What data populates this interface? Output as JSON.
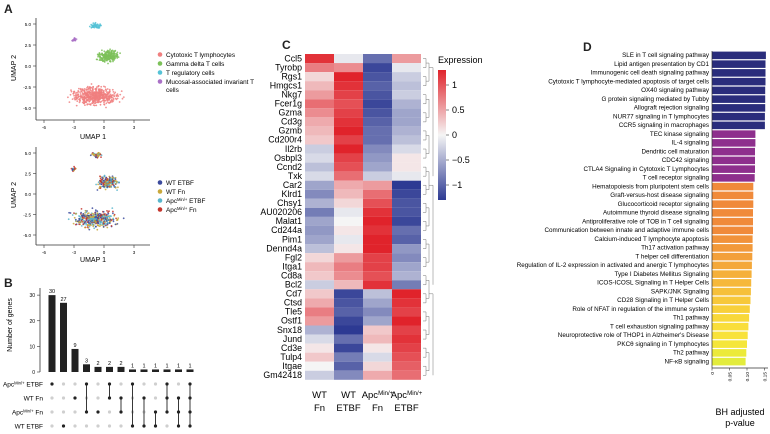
{
  "panels": {
    "A": {
      "letter": "A",
      "umap_top": {
        "xlabel": "UMAP 1",
        "ylabel": "UMAP 2",
        "x_ticks": [
          "-6",
          "-3",
          "0",
          "3"
        ],
        "y_ticks": [
          "5.0",
          "2.5",
          "0.0",
          "-2.5",
          "-5.0"
        ],
        "legend": [
          {
            "label": "Cytotoxic T lymphocytes",
            "color": "#f07f7f"
          },
          {
            "label": "Gamma delta T cells",
            "color": "#7cc159"
          },
          {
            "label": "T regulatory cells",
            "color": "#55c2d6"
          },
          {
            "label": "Mucosal-associated invariant T cells",
            "color": "#a970c6"
          }
        ]
      },
      "umap_bottom": {
        "xlabel": "UMAP 1",
        "ylabel": "UMAP 2",
        "x_ticks": [
          "-6",
          "-3",
          "0",
          "3"
        ],
        "y_ticks": [
          "5.0",
          "2.5",
          "0.0",
          "-2.5",
          "-5.0"
        ],
        "legend": [
          {
            "label": "WT ETBF",
            "color": "#3b4a9c"
          },
          {
            "label": "WT Fn",
            "color": "#c9a83b"
          },
          {
            "label": "Apc",
            "sup": "Min/+",
            "suffix": " ETBF",
            "color": "#58b6cc"
          },
          {
            "label": "Apc",
            "sup": "Min/+",
            "suffix": " Fn",
            "color": "#c4342c"
          }
        ]
      }
    },
    "B": {
      "letter": "B",
      "chart_data": {
        "type": "bar",
        "ylabel": "Number of genes",
        "y_ticks": [
          "30",
          "20",
          "10",
          "0"
        ],
        "ylim": [
          0,
          32
        ],
        "values": [
          30,
          27,
          9,
          3,
          2,
          2,
          2,
          1,
          1,
          1,
          1,
          1,
          1
        ],
        "set_labels": [
          {
            "label": "Apc",
            "sup": "Min/+",
            "suffix": " ETBF"
          },
          {
            "label": "WT Fn",
            "sup": "",
            "suffix": ""
          },
          {
            "label": "Apc",
            "sup": "Min/+",
            "suffix": " Fn"
          },
          {
            "label": "WT ETBF",
            "sup": "",
            "suffix": ""
          }
        ],
        "membership": [
          [
            0
          ],
          [
            3
          ],
          [
            1
          ],
          [
            0,
            2
          ],
          [
            2
          ],
          [
            0,
            1
          ],
          [
            1,
            2
          ],
          [
            0,
            3
          ],
          [
            1,
            3
          ],
          [
            2,
            3
          ],
          [
            0,
            1,
            2
          ],
          [
            1,
            2,
            3
          ],
          [
            0,
            1,
            2,
            3
          ]
        ]
      }
    },
    "C": {
      "letter": "C",
      "chart_data": {
        "type": "heatmap",
        "legend_title": "Expression",
        "colorbar_ticks": [
          "1",
          "0.5",
          "0",
          "-0.5",
          "-1"
        ],
        "columns": [
          {
            "line1": "WT",
            "sup": "",
            "line2": "Fn"
          },
          {
            "line1": "WT",
            "sup": "",
            "line2": "ETBF"
          },
          {
            "line1": "Apc",
            "sup": "Min/+",
            "line2": "Fn"
          },
          {
            "line1": "Apc",
            "sup": "Min/+",
            "line2": "ETBF"
          }
        ],
        "genes": [
          "Ccl5",
          "Tyrobp",
          "Rgs1",
          "Hmgcs1",
          "Nkg7",
          "Fcer1g",
          "Gzma",
          "Cd3g",
          "Gzmb",
          "Cd200r4",
          "Il2rb",
          "Osbpl3",
          "Ccnd2",
          "Txk",
          "Car2",
          "Klrd1",
          "Chsy1",
          "AU020206",
          "Malat1",
          "Cd244a",
          "Pim1",
          "Dennd4a",
          "Fgl2",
          "Itga1",
          "Cd8a",
          "Bcl2",
          "Cd7",
          "Ctsd",
          "Tle5",
          "Ostf1",
          "Snx18",
          "Jund",
          "Cd3e",
          "Tulp4",
          "Itgae",
          "Gm42418"
        ],
        "values": [
          [
            1.3,
            -0.1,
            -1.0,
            0.6
          ],
          [
            0.8,
            0.7,
            -1.3,
            -0.1
          ],
          [
            0.2,
            1.4,
            -1.2,
            -0.3
          ],
          [
            0.4,
            1.3,
            -1.1,
            -0.4
          ],
          [
            0.6,
            1.2,
            -1.2,
            -0.3
          ],
          [
            0.9,
            1.1,
            -1.3,
            -0.5
          ],
          [
            0.7,
            1.2,
            -1.2,
            -0.6
          ],
          [
            0.5,
            1.3,
            -1.1,
            -0.6
          ],
          [
            0.4,
            1.4,
            -1.0,
            -0.5
          ],
          [
            0.3,
            1.2,
            -1.0,
            -0.4
          ],
          [
            -0.3,
            1.4,
            -0.8,
            -0.2
          ],
          [
            -0.2,
            1.2,
            -0.7,
            0.1
          ],
          [
            -0.4,
            1.1,
            -0.6,
            0.1
          ],
          [
            -0.2,
            0.9,
            -0.3,
            -0.1
          ],
          [
            -0.6,
            0.5,
            0.6,
            -1.4
          ],
          [
            -0.8,
            0.4,
            0.9,
            -1.3
          ],
          [
            -0.5,
            0.2,
            1.1,
            -1.2
          ],
          [
            -0.9,
            -0.1,
            1.3,
            -1.2
          ],
          [
            -0.6,
            0.0,
            1.4,
            -1.3
          ],
          [
            -0.7,
            0.1,
            1.3,
            -1.0
          ],
          [
            -0.6,
            -0.1,
            1.4,
            -1.1
          ],
          [
            -0.4,
            0.1,
            1.4,
            -0.7
          ],
          [
            0.2,
            0.6,
            1.2,
            -0.8
          ],
          [
            0.4,
            0.8,
            1.2,
            -0.6
          ],
          [
            0.3,
            0.7,
            1.1,
            -0.5
          ],
          [
            -0.3,
            0.4,
            1.3,
            -0.9
          ],
          [
            0.3,
            -1.3,
            -0.4,
            1.4
          ],
          [
            0.5,
            -1.2,
            -0.6,
            1.3
          ],
          [
            0.8,
            -1.1,
            -0.8,
            1.2
          ],
          [
            0.6,
            -1.3,
            -0.6,
            1.4
          ],
          [
            -0.5,
            -1.4,
            0.3,
            1.2
          ],
          [
            -0.2,
            -1.0,
            0.4,
            1.3
          ],
          [
            0.1,
            -1.3,
            0.1,
            1.2
          ],
          [
            0.3,
            -0.9,
            -0.2,
            1.1
          ],
          [
            0.0,
            -1.1,
            0.2,
            1.0
          ],
          [
            -0.3,
            -0.8,
            0.5,
            0.9
          ]
        ]
      }
    },
    "D": {
      "letter": "D",
      "chart_data": {
        "type": "bar",
        "orientation": "horizontal",
        "xlabel_line1": "BH adjusted",
        "xlabel_line2": "p-value",
        "x_ticks": [
          "0",
          "0.05",
          "0.10",
          "0.15"
        ],
        "xlim": [
          0,
          0.16
        ],
        "categories": [
          "SLE in T cell signaling pathway",
          "Lipid antigen presentation by CD1",
          "Immunogenic cell death signaling pathway",
          "Cytotoxic T lymphocyte-mediated apoptosis of target cells",
          "OX40 signaling pathway",
          "G protein signaling mediated by Tubby",
          "Allograft rejection signaling",
          "NUR77 signaling in T lymphocytes",
          "CCR5 signaling in macrophages",
          "TEC kinase signaling",
          "IL-4 signaling",
          "Dendritic cell maturation",
          "CDC42 signaling",
          "CTLA4 Signaling in Cytotoxic T Lymphocytes",
          "T cell receptor signaling",
          "Hematopoiesis from pluripotent stem cells",
          "Graft-versus-host disease signaling",
          "Glucocorticoid receptor signaling",
          "Autoimmune thyroid disease signaling",
          "Antiproliferative role of TOB in T cell signaling",
          "Communication between innate and adaptive immune cells",
          "Calcium-induced T lymphocyte apoptosis",
          "Th17 activation pathway",
          "T helper cell differentiation",
          "Regulation of IL-2 expression in activated and anergic T lymphocytes",
          "Type I Diabetes Mellitus Signaling",
          "ICOS-ICOSL Signaling in T Helper Cells",
          "SAPK/JNK Signaling",
          "CD28 Signaling in T Helper Cells",
          "Role of NFAT in regulation of the immune system",
          "Th1 pathway",
          "T cell exhaustion signaling pathway",
          "Neuroprotective role of THOP1 in Alzheimer's Disease",
          "PKCθ signaling in T lymphocytes",
          "Th2 pathway",
          "NF-κB signaling"
        ],
        "values": [
          0.154,
          0.153,
          0.153,
          0.153,
          0.152,
          0.152,
          0.152,
          0.151,
          0.151,
          0.124,
          0.124,
          0.123,
          0.123,
          0.123,
          0.122,
          0.118,
          0.118,
          0.118,
          0.117,
          0.117,
          0.117,
          0.116,
          0.116,
          0.115,
          0.114,
          0.113,
          0.112,
          0.111,
          0.11,
          0.108,
          0.106,
          0.104,
          0.102,
          0.1,
          0.098,
          0.096
        ],
        "colors": [
          "#2a2d7c",
          "#2a2d7c",
          "#2a2d7c",
          "#2a2d7c",
          "#2a2d7c",
          "#2a2d7c",
          "#2a2d7c",
          "#2a2d7c",
          "#2a2d7c",
          "#8e2f8d",
          "#8e2f8d",
          "#8e2f8d",
          "#8e2f8d",
          "#8e2f8d",
          "#8e2f8d",
          "#f08a3a",
          "#f08a3a",
          "#f08a3a",
          "#f08a3a",
          "#f08a3a",
          "#f08a3a",
          "#f1923a",
          "#f2993a",
          "#f3a03a",
          "#f4a83a",
          "#f5b03a",
          "#f6b83a",
          "#f6c03a",
          "#f7c83a",
          "#f8d03a",
          "#f8d83a",
          "#f9de3a",
          "#f8e23a",
          "#f5e63a",
          "#ecea3a",
          "#e3ec3c"
        ]
      }
    }
  }
}
